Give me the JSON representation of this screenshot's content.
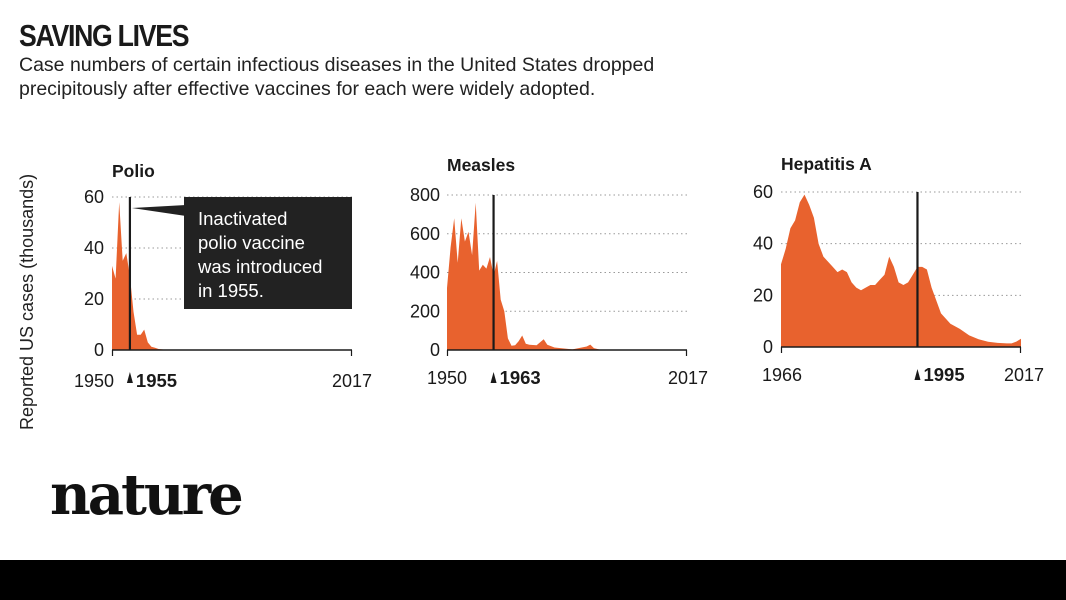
{
  "header": {
    "title": "SAVING LIVES",
    "subtitle": "Case numbers of certain infectious diseases in the United States dropped precipitously after effective vaccines for each were widely adopted."
  },
  "shared_ylabel": "Reported US cases (thousands)",
  "callout": {
    "lines": [
      "Inactivated",
      "polio vaccine",
      "was introduced",
      "in 1955."
    ]
  },
  "brand": "nature",
  "colors": {
    "area": "#e8622e",
    "ink": "#1a1a1a",
    "grid": "#9a9a9a",
    "callout_bg": "#222222"
  },
  "chart_data": [
    {
      "type": "area",
      "title": "Polio",
      "xlabel": "",
      "ylabel": "Reported US cases (thousands)",
      "xlim": [
        1950,
        2017
      ],
      "ylim": [
        0,
        60
      ],
      "yticks": [
        0,
        20,
        40,
        60
      ],
      "xtick_labels": [
        "1950",
        "2017"
      ],
      "vaccine_year": 1955,
      "vaccine_label": "1955",
      "x": [
        1950,
        1951,
        1952,
        1953,
        1954,
        1955,
        1956,
        1957,
        1958,
        1959,
        1960,
        1961,
        1962,
        1963,
        1965,
        1970,
        1980,
        2017
      ],
      "values": [
        33,
        28,
        58,
        35,
        38,
        29,
        15,
        6,
        6,
        8,
        3,
        1.3,
        0.9,
        0.4,
        0.1,
        0.03,
        0.01,
        0
      ]
    },
    {
      "type": "area",
      "title": "Measles",
      "xlabel": "",
      "ylabel": "Reported US cases (thousands)",
      "xlim": [
        1950,
        2017
      ],
      "ylim": [
        0,
        800
      ],
      "yticks": [
        0,
        200,
        400,
        600,
        800
      ],
      "xtick_labels": [
        "1950",
        "2017"
      ],
      "vaccine_year": 1963,
      "vaccine_label": "1963",
      "x": [
        1950,
        1951,
        1952,
        1953,
        1954,
        1955,
        1956,
        1957,
        1958,
        1959,
        1960,
        1961,
        1962,
        1963,
        1964,
        1965,
        1966,
        1967,
        1968,
        1969,
        1970,
        1971,
        1972,
        1973,
        1975,
        1977,
        1978,
        1980,
        1985,
        1989,
        1990,
        1991,
        1993,
        2000,
        2017
      ],
      "values": [
        320,
        530,
        680,
        450,
        680,
        560,
        610,
        490,
        760,
        410,
        440,
        420,
        480,
        385,
        460,
        260,
        200,
        60,
        22,
        25,
        45,
        75,
        32,
        27,
        25,
        55,
        27,
        13,
        3,
        18,
        28,
        10,
        0.3,
        0.1,
        0.1
      ]
    },
    {
      "type": "area",
      "title": "Hepatitis A",
      "xlabel": "",
      "ylabel": "Reported US cases (thousands)",
      "xlim": [
        1966,
        2017
      ],
      "ylim": [
        0,
        60
      ],
      "yticks": [
        0,
        20,
        40,
        60
      ],
      "xtick_labels": [
        "1966",
        "2017"
      ],
      "vaccine_year": 1995,
      "vaccine_label": "1995",
      "x": [
        1966,
        1967,
        1968,
        1969,
        1970,
        1971,
        1972,
        1973,
        1974,
        1975,
        1976,
        1977,
        1978,
        1979,
        1980,
        1981,
        1982,
        1983,
        1984,
        1985,
        1986,
        1987,
        1988,
        1989,
        1990,
        1991,
        1992,
        1993,
        1994,
        1995,
        1996,
        1997,
        1998,
        1999,
        2000,
        2002,
        2004,
        2006,
        2008,
        2010,
        2012,
        2014,
        2015,
        2016,
        2017
      ],
      "values": [
        32,
        38,
        46,
        49,
        56,
        59,
        55,
        50,
        40,
        35,
        33,
        31,
        29,
        30,
        29,
        25,
        23,
        22,
        23,
        24,
        24,
        26,
        28,
        35,
        31,
        25,
        24,
        25,
        28,
        31,
        31,
        30,
        23,
        18,
        13,
        9,
        7,
        4.5,
        3,
        2,
        1.6,
        1.4,
        1.4,
        2.1,
        3.2
      ]
    }
  ]
}
